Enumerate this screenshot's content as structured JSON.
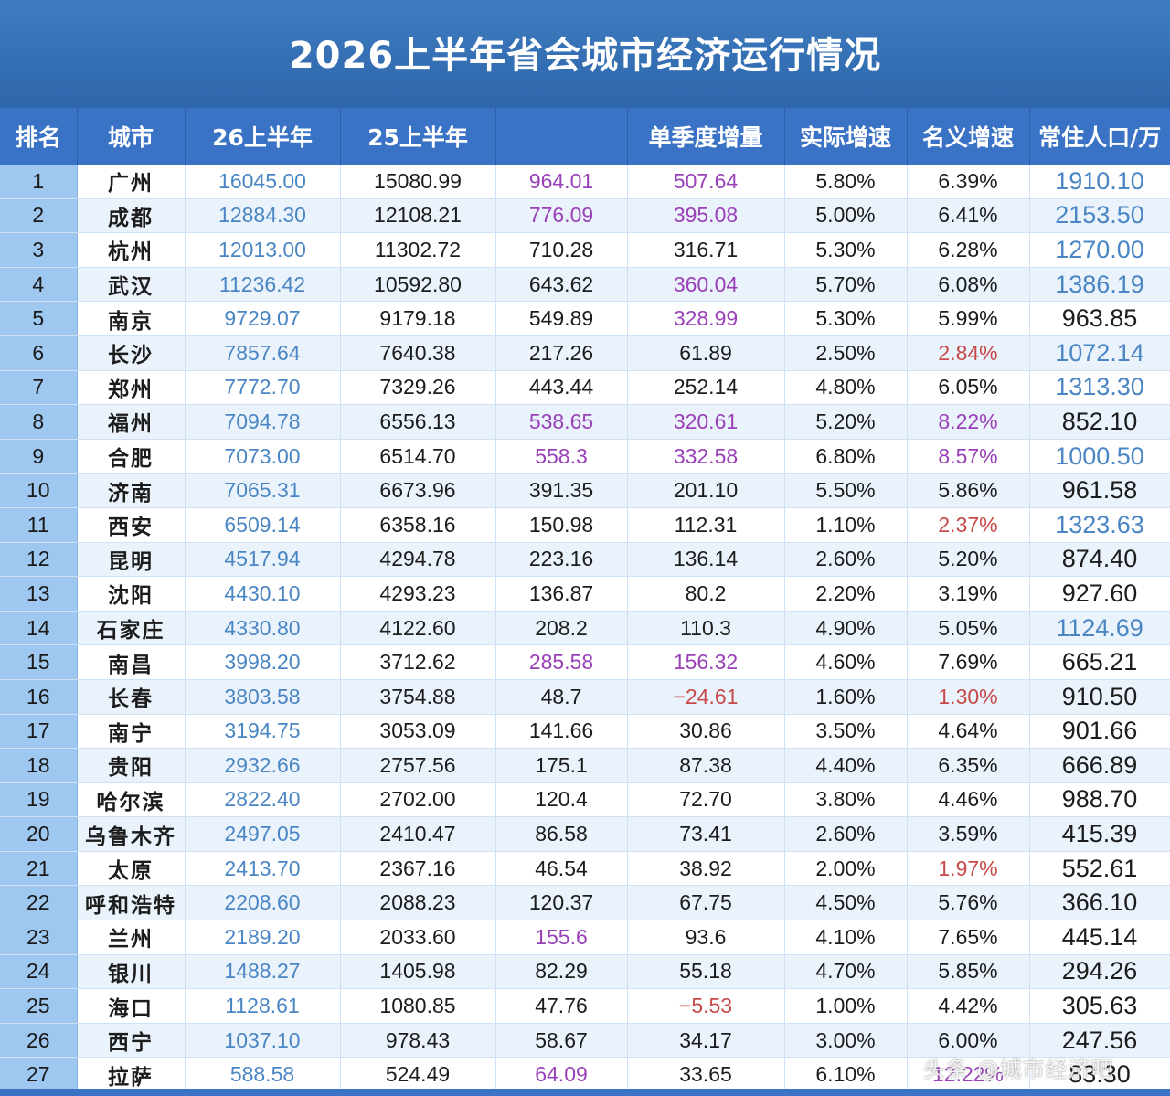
{
  "title": "2026上半年省会城市经济运行情况",
  "headers": [
    "排名",
    "城市",
    "26上半年",
    "25上半年",
    "",
    "单季度增量",
    "实际增速",
    "名义增速",
    "常住人口/万"
  ],
  "colors": {
    "blue": "#4a86c4",
    "purple": "#9a40b8",
    "red": "#c74a4a",
    "black": "#1c1c1c"
  },
  "rows": [
    {
      "rank": "1",
      "city": "广州",
      "h1_2026": "16045.00",
      "h1_2025": "15080.99",
      "increase": "964.01",
      "increase_color": "purple",
      "quarter": "507.64",
      "quarter_color": "purple",
      "real": "5.80%",
      "nominal": "6.39%",
      "nominal_color": "black",
      "population": "1910.10",
      "population_color": "blue"
    },
    {
      "rank": "2",
      "city": "成都",
      "h1_2026": "12884.30",
      "h1_2025": "12108.21",
      "increase": "776.09",
      "increase_color": "purple",
      "quarter": "395.08",
      "quarter_color": "purple",
      "real": "5.00%",
      "nominal": "6.41%",
      "nominal_color": "black",
      "population": "2153.50",
      "population_color": "blue"
    },
    {
      "rank": "3",
      "city": "杭州",
      "h1_2026": "12013.00",
      "h1_2025": "11302.72",
      "increase": "710.28",
      "increase_color": "black",
      "quarter": "316.71",
      "quarter_color": "black",
      "real": "5.30%",
      "nominal": "6.28%",
      "nominal_color": "black",
      "population": "1270.00",
      "population_color": "blue"
    },
    {
      "rank": "4",
      "city": "武汉",
      "h1_2026": "11236.42",
      "h1_2025": "10592.80",
      "increase": "643.62",
      "increase_color": "black",
      "quarter": "360.04",
      "quarter_color": "purple",
      "real": "5.70%",
      "nominal": "6.08%",
      "nominal_color": "black",
      "population": "1386.19",
      "population_color": "blue"
    },
    {
      "rank": "5",
      "city": "南京",
      "h1_2026": "9729.07",
      "h1_2025": "9179.18",
      "increase": "549.89",
      "increase_color": "black",
      "quarter": "328.99",
      "quarter_color": "purple",
      "real": "5.30%",
      "nominal": "5.99%",
      "nominal_color": "black",
      "population": "963.85",
      "population_color": "black"
    },
    {
      "rank": "6",
      "city": "长沙",
      "h1_2026": "7857.64",
      "h1_2025": "7640.38",
      "increase": "217.26",
      "increase_color": "black",
      "quarter": "61.89",
      "quarter_color": "black",
      "real": "2.50%",
      "nominal": "2.84%",
      "nominal_color": "red",
      "population": "1072.14",
      "population_color": "blue"
    },
    {
      "rank": "7",
      "city": "郑州",
      "h1_2026": "7772.70",
      "h1_2025": "7329.26",
      "increase": "443.44",
      "increase_color": "black",
      "quarter": "252.14",
      "quarter_color": "black",
      "real": "4.80%",
      "nominal": "6.05%",
      "nominal_color": "black",
      "population": "1313.30",
      "population_color": "blue"
    },
    {
      "rank": "8",
      "city": "福州",
      "h1_2026": "7094.78",
      "h1_2025": "6556.13",
      "increase": "538.65",
      "increase_color": "purple",
      "quarter": "320.61",
      "quarter_color": "purple",
      "real": "5.20%",
      "nominal": "8.22%",
      "nominal_color": "purple",
      "population": "852.10",
      "population_color": "black"
    },
    {
      "rank": "9",
      "city": "合肥",
      "h1_2026": "7073.00",
      "h1_2025": "6514.70",
      "increase": "558.3",
      "increase_color": "purple",
      "quarter": "332.58",
      "quarter_color": "purple",
      "real": "6.80%",
      "nominal": "8.57%",
      "nominal_color": "purple",
      "population": "1000.50",
      "population_color": "blue"
    },
    {
      "rank": "10",
      "city": "济南",
      "h1_2026": "7065.31",
      "h1_2025": "6673.96",
      "increase": "391.35",
      "increase_color": "black",
      "quarter": "201.10",
      "quarter_color": "black",
      "real": "5.50%",
      "nominal": "5.86%",
      "nominal_color": "black",
      "population": "961.58",
      "population_color": "black"
    },
    {
      "rank": "11",
      "city": "西安",
      "h1_2026": "6509.14",
      "h1_2025": "6358.16",
      "increase": "150.98",
      "increase_color": "black",
      "quarter": "112.31",
      "quarter_color": "black",
      "real": "1.10%",
      "nominal": "2.37%",
      "nominal_color": "red",
      "population": "1323.63",
      "population_color": "blue"
    },
    {
      "rank": "12",
      "city": "昆明",
      "h1_2026": "4517.94",
      "h1_2025": "4294.78",
      "increase": "223.16",
      "increase_color": "black",
      "quarter": "136.14",
      "quarter_color": "black",
      "real": "2.60%",
      "nominal": "5.20%",
      "nominal_color": "black",
      "population": "874.40",
      "population_color": "black"
    },
    {
      "rank": "13",
      "city": "沈阳",
      "h1_2026": "4430.10",
      "h1_2025": "4293.23",
      "increase": "136.87",
      "increase_color": "black",
      "quarter": "80.2",
      "quarter_color": "black",
      "real": "2.20%",
      "nominal": "3.19%",
      "nominal_color": "black",
      "population": "927.60",
      "population_color": "black"
    },
    {
      "rank": "14",
      "city": "石家庄",
      "h1_2026": "4330.80",
      "h1_2025": "4122.60",
      "increase": "208.2",
      "increase_color": "black",
      "quarter": "110.3",
      "quarter_color": "black",
      "real": "4.90%",
      "nominal": "5.05%",
      "nominal_color": "black",
      "population": "1124.69",
      "population_color": "blue"
    },
    {
      "rank": "15",
      "city": "南昌",
      "h1_2026": "3998.20",
      "h1_2025": "3712.62",
      "increase": "285.58",
      "increase_color": "purple",
      "quarter": "156.32",
      "quarter_color": "purple",
      "real": "4.60%",
      "nominal": "7.69%",
      "nominal_color": "black",
      "population": "665.21",
      "population_color": "black"
    },
    {
      "rank": "16",
      "city": "长春",
      "h1_2026": "3803.58",
      "h1_2025": "3754.88",
      "increase": "48.7",
      "increase_color": "black",
      "quarter": "−24.61",
      "quarter_color": "red",
      "real": "1.60%",
      "nominal": "1.30%",
      "nominal_color": "red",
      "population": "910.50",
      "population_color": "black"
    },
    {
      "rank": "17",
      "city": "南宁",
      "h1_2026": "3194.75",
      "h1_2025": "3053.09",
      "increase": "141.66",
      "increase_color": "black",
      "quarter": "30.86",
      "quarter_color": "black",
      "real": "3.50%",
      "nominal": "4.64%",
      "nominal_color": "black",
      "population": "901.66",
      "population_color": "black"
    },
    {
      "rank": "18",
      "city": "贵阳",
      "h1_2026": "2932.66",
      "h1_2025": "2757.56",
      "increase": "175.1",
      "increase_color": "black",
      "quarter": "87.38",
      "quarter_color": "black",
      "real": "4.40%",
      "nominal": "6.35%",
      "nominal_color": "black",
      "population": "666.89",
      "population_color": "black"
    },
    {
      "rank": "19",
      "city": "哈尔滨",
      "h1_2026": "2822.40",
      "h1_2025": "2702.00",
      "increase": "120.4",
      "increase_color": "black",
      "quarter": "72.70",
      "quarter_color": "black",
      "real": "3.80%",
      "nominal": "4.46%",
      "nominal_color": "black",
      "population": "988.70",
      "population_color": "black"
    },
    {
      "rank": "20",
      "city": "乌鲁木齐",
      "h1_2026": "2497.05",
      "h1_2025": "2410.47",
      "increase": "86.58",
      "increase_color": "black",
      "quarter": "73.41",
      "quarter_color": "black",
      "real": "2.60%",
      "nominal": "3.59%",
      "nominal_color": "black",
      "population": "415.39",
      "population_color": "black"
    },
    {
      "rank": "21",
      "city": "太原",
      "h1_2026": "2413.70",
      "h1_2025": "2367.16",
      "increase": "46.54",
      "increase_color": "black",
      "quarter": "38.92",
      "quarter_color": "black",
      "real": "2.00%",
      "nominal": "1.97%",
      "nominal_color": "red",
      "population": "552.61",
      "population_color": "black"
    },
    {
      "rank": "22",
      "city": "呼和浩特",
      "h1_2026": "2208.60",
      "h1_2025": "2088.23",
      "increase": "120.37",
      "increase_color": "black",
      "quarter": "67.75",
      "quarter_color": "black",
      "real": "4.50%",
      "nominal": "5.76%",
      "nominal_color": "black",
      "population": "366.10",
      "population_color": "black"
    },
    {
      "rank": "23",
      "city": "兰州",
      "h1_2026": "2189.20",
      "h1_2025": "2033.60",
      "increase": "155.6",
      "increase_color": "purple",
      "quarter": "93.6",
      "quarter_color": "black",
      "real": "4.10%",
      "nominal": "7.65%",
      "nominal_color": "black",
      "population": "445.14",
      "population_color": "black"
    },
    {
      "rank": "24",
      "city": "银川",
      "h1_2026": "1488.27",
      "h1_2025": "1405.98",
      "increase": "82.29",
      "increase_color": "black",
      "quarter": "55.18",
      "quarter_color": "black",
      "real": "4.70%",
      "nominal": "5.85%",
      "nominal_color": "black",
      "population": "294.26",
      "population_color": "black"
    },
    {
      "rank": "25",
      "city": "海口",
      "h1_2026": "1128.61",
      "h1_2025": "1080.85",
      "increase": "47.76",
      "increase_color": "black",
      "quarter": "−5.53",
      "quarter_color": "red",
      "real": "1.00%",
      "nominal": "4.42%",
      "nominal_color": "black",
      "population": "305.63",
      "population_color": "black"
    },
    {
      "rank": "26",
      "city": "西宁",
      "h1_2026": "1037.10",
      "h1_2025": "978.43",
      "increase": "58.67",
      "increase_color": "black",
      "quarter": "34.17",
      "quarter_color": "black",
      "real": "3.00%",
      "nominal": "6.00%",
      "nominal_color": "black",
      "population": "247.56",
      "population_color": "black"
    },
    {
      "rank": "27",
      "city": "拉萨",
      "h1_2026": "588.58",
      "h1_2025": "524.49",
      "increase": "64.09",
      "increase_color": "purple",
      "quarter": "33.65",
      "quarter_color": "black",
      "real": "6.10%",
      "nominal": "12.22%",
      "nominal_color": "purple",
      "population": "83.30",
      "population_color": "black"
    }
  ],
  "watermark": "头条 @城市经济吧"
}
